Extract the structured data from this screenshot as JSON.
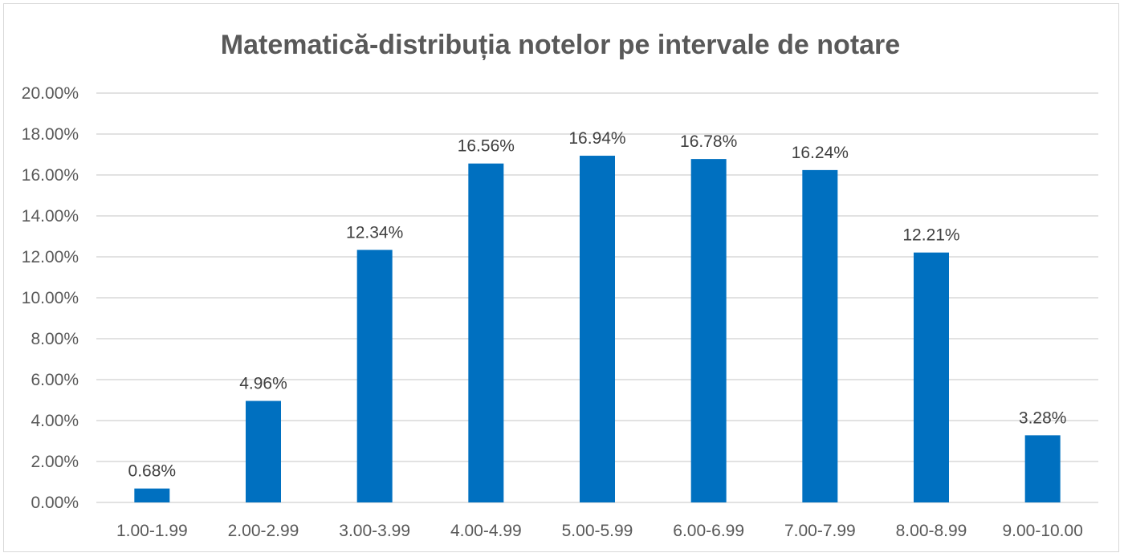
{
  "chart_data": {
    "type": "bar",
    "title": "Matematică-distribuția notelor pe intervale de notare",
    "xlabel": "",
    "ylabel": "",
    "categories": [
      "1.00-1.99",
      "2.00-2.99",
      "3.00-3.99",
      "4.00-4.99",
      "5.00-5.99",
      "6.00-6.99",
      "7.00-7.99",
      "8.00-8.99",
      "9.00-10.00"
    ],
    "values": [
      0.68,
      4.96,
      12.34,
      16.56,
      16.94,
      16.78,
      16.24,
      12.21,
      3.28
    ],
    "value_labels": [
      "0.68%",
      "4.96%",
      "12.34%",
      "16.56%",
      "16.94%",
      "16.78%",
      "16.24%",
      "12.21%",
      "3.28%"
    ],
    "ylim": [
      0,
      20
    ],
    "yticks": [
      0,
      2,
      4,
      6,
      8,
      10,
      12,
      14,
      16,
      18,
      20
    ],
    "ytick_labels": [
      "0.00%",
      "2.00%",
      "4.00%",
      "6.00%",
      "8.00%",
      "10.00%",
      "12.00%",
      "14.00%",
      "16.00%",
      "18.00%",
      "20.00%"
    ],
    "grid": true,
    "legend": "none",
    "bar_color": "#0070C0"
  }
}
